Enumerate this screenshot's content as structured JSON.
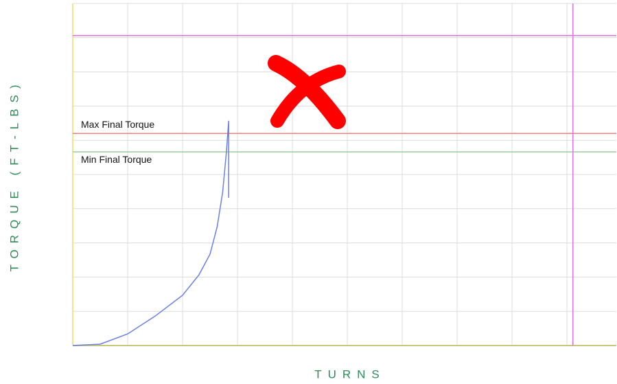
{
  "chart_data": {
    "type": "line",
    "x_label": "TURNS",
    "y_label": "TORQUE (FT-LBS)",
    "xlim": [
      0,
      9.9
    ],
    "ylim": [
      0,
      10
    ],
    "xticks": [
      0,
      1,
      2,
      3,
      4,
      5,
      6,
      7,
      8,
      9
    ],
    "yticks": [
      0,
      1,
      2,
      3,
      4,
      5,
      6,
      7,
      8,
      9,
      10
    ],
    "grid": true,
    "series": [
      {
        "color": "#6a7ee8",
        "x": [
          0,
          0.5,
          1,
          1.5,
          2,
          2.3,
          2.5,
          2.63,
          2.73,
          2.8,
          2.84,
          2.84
        ],
        "values": [
          0,
          0.04,
          0.34,
          0.86,
          1.47,
          2.07,
          2.67,
          3.47,
          4.48,
          5.68,
          6.57,
          4.32
        ]
      }
    ],
    "reference_lines": [
      {
        "label": "Max Final Torque",
        "value": 6.2,
        "color": "#f08080"
      },
      {
        "label": "Min Final Torque",
        "value": 5.66,
        "color": "#9acd9a"
      },
      {
        "value": 9.06,
        "color": "#e070e0"
      }
    ],
    "vertical_lines": [
      {
        "value": 9.11,
        "color": "#e070e0"
      }
    ]
  }
}
